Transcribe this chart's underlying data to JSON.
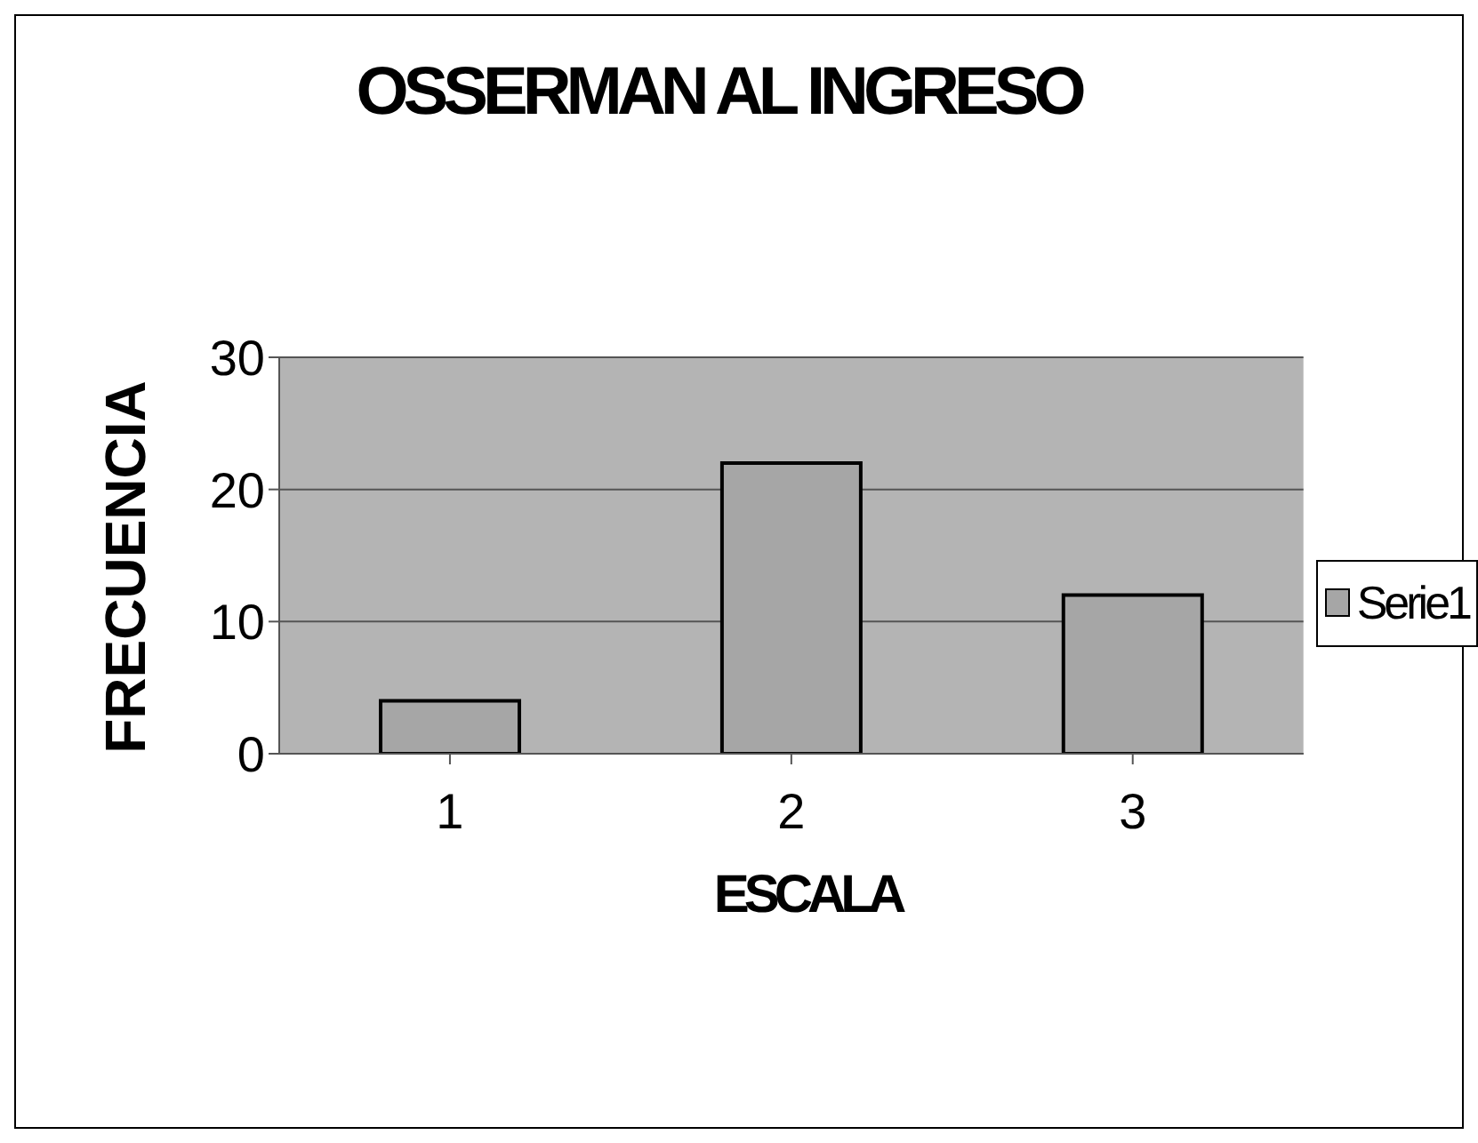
{
  "chart_data": {
    "type": "bar",
    "title": "OSSERMAN AL INGRESO",
    "xlabel": "ESCALA",
    "ylabel": "FRECUENCIA",
    "categories": [
      "1",
      "2",
      "3"
    ],
    "series": [
      {
        "name": "Serie1",
        "color": "#a6a6a6",
        "values": [
          4,
          22,
          12
        ]
      }
    ],
    "ylim": [
      0,
      30
    ],
    "yticks": [
      0,
      10,
      20,
      30
    ],
    "grid": "y",
    "legend": "right"
  }
}
